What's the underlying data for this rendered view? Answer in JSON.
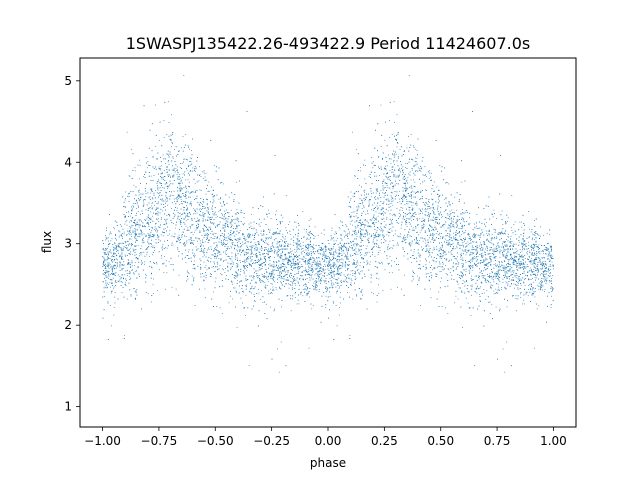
{
  "chart_data": {
    "type": "scatter",
    "title": "1SWASPJ135422.26-493422.9 Period 11424607.0s",
    "xlabel": "phase",
    "ylabel": "flux",
    "xlim": [
      -1.1,
      1.1
    ],
    "ylim": [
      0.75,
      5.28
    ],
    "x_ticks": [
      -1.0,
      -0.75,
      -0.5,
      -0.25,
      0.0,
      0.25,
      0.5,
      0.75,
      1.0
    ],
    "x_tick_labels": [
      "−1.00",
      "−0.75",
      "−0.50",
      "−0.25",
      "0.00",
      "0.25",
      "0.50",
      "0.75",
      "1.00"
    ],
    "y_ticks": [
      1,
      2,
      3,
      4,
      5
    ],
    "y_tick_labels": [
      "1",
      "2",
      "3",
      "4",
      "5"
    ],
    "grid": false,
    "legend": "none",
    "marker_color": "#1f77b4",
    "marker": "point",
    "series_profile": {
      "phase": [
        0.0,
        0.02,
        0.05,
        0.08,
        0.1,
        0.12,
        0.15,
        0.18,
        0.2,
        0.23,
        0.25,
        0.28,
        0.3,
        0.32,
        0.35,
        0.38,
        0.4,
        0.42,
        0.45,
        0.48,
        0.5,
        0.53,
        0.55,
        0.58,
        0.6,
        0.63,
        0.65,
        0.68,
        0.7,
        0.73,
        0.75,
        0.78,
        0.8,
        0.83,
        0.85,
        0.88,
        0.9,
        0.93,
        0.95,
        0.98,
        1.0
      ],
      "flux_median": [
        2.7,
        2.72,
        2.78,
        2.85,
        2.95,
        3.05,
        3.1,
        3.25,
        3.3,
        3.35,
        3.4,
        3.45,
        3.75,
        3.6,
        3.45,
        3.3,
        3.3,
        3.25,
        3.2,
        3.15,
        3.1,
        3.05,
        3.0,
        2.95,
        2.95,
        2.9,
        2.85,
        2.85,
        2.82,
        2.8,
        2.8,
        2.8,
        2.78,
        2.78,
        2.78,
        2.76,
        2.75,
        2.75,
        2.72,
        2.72,
        2.7
      ],
      "flux_spread": [
        0.2,
        0.2,
        0.22,
        0.25,
        0.3,
        0.35,
        0.35,
        0.4,
        0.4,
        0.45,
        0.45,
        0.45,
        0.5,
        0.45,
        0.4,
        0.4,
        0.4,
        0.38,
        0.35,
        0.35,
        0.35,
        0.33,
        0.3,
        0.3,
        0.3,
        0.28,
        0.28,
        0.26,
        0.25,
        0.25,
        0.25,
        0.24,
        0.24,
        0.23,
        0.23,
        0.22,
        0.22,
        0.22,
        0.21,
        0.2,
        0.2
      ]
    },
    "n_points_per_cycle": 5000,
    "phase_repeat": [
      -1,
      0
    ]
  }
}
